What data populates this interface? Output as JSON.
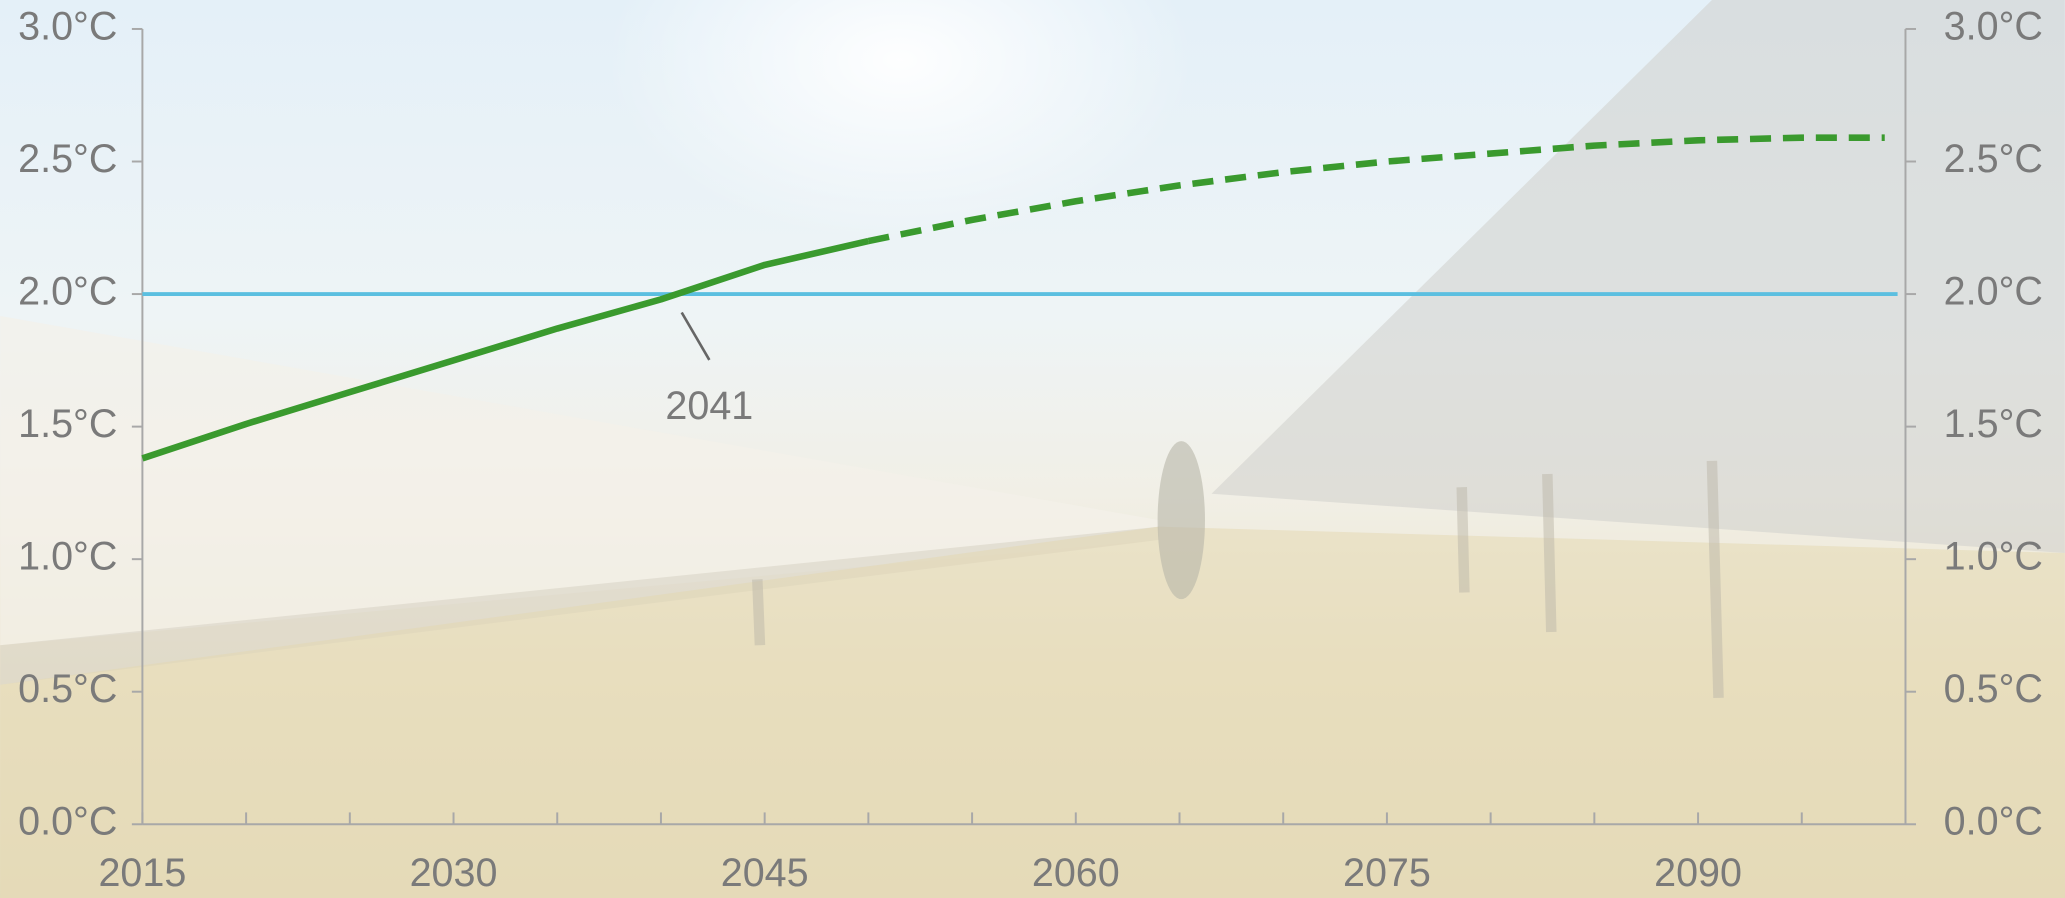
{
  "chart_data": {
    "type": "line",
    "x": [
      2015,
      2020,
      2025,
      2030,
      2035,
      2040,
      2045,
      2050,
      2055,
      2060,
      2065,
      2070,
      2075,
      2080,
      2085,
      2090,
      2095,
      2099
    ],
    "series": [
      {
        "color": "#3a9a2e",
        "dashed": false,
        "values": [
          1.38,
          1.51,
          1.63,
          1.75,
          1.87,
          1.98,
          2.11,
          2.2,
          null,
          null,
          null,
          null,
          null,
          null,
          null,
          null,
          null,
          null
        ]
      },
      {
        "color": "#3a9a2e",
        "dashed": true,
        "values": [
          null,
          null,
          null,
          null,
          null,
          null,
          null,
          2.2,
          2.28,
          2.35,
          2.41,
          2.46,
          2.5,
          2.53,
          2.56,
          2.58,
          2.59,
          2.59
        ]
      }
    ],
    "hlines": [
      {
        "value": 2.0,
        "color": "#5bbfe0"
      }
    ],
    "annotations": [
      {
        "label": "2041",
        "x": 2041,
        "y": 2.0
      }
    ],
    "xlim": [
      2015,
      2100
    ],
    "xticks": [
      2015,
      {
        "value": 2020,
        "label": null
      },
      {
        "value": 2025,
        "label": null
      },
      2030,
      {
        "value": 2035,
        "label": null
      },
      {
        "value": 2040,
        "label": null
      },
      2045,
      {
        "value": 2050,
        "label": null
      },
      {
        "value": 2055,
        "label": null
      },
      2060,
      {
        "value": 2065,
        "label": null
      },
      {
        "value": 2070,
        "label": null
      },
      2075,
      {
        "value": 2080,
        "label": null
      },
      {
        "value": 2085,
        "label": null
      },
      2090,
      {
        "value": 2095,
        "label": null
      },
      {
        "value": 2100,
        "label": null
      }
    ],
    "ylim": [
      0,
      3
    ],
    "yticks": [
      {
        "value": 0,
        "label": "0.0°C"
      },
      {
        "value": 0.5,
        "label": "0.5°C"
      },
      {
        "value": 1,
        "label": "1.0°C"
      },
      {
        "value": 1.5,
        "label": "1.5°C"
      },
      {
        "value": 2,
        "label": "2.0°C"
      },
      {
        "value": 2.5,
        "label": "2.5°C"
      },
      {
        "value": 3,
        "label": "3.0°C"
      }
    ],
    "y2lim": [
      0,
      3
    ],
    "y2ticks": [
      {
        "value": 0,
        "label": "0.0°C"
      },
      {
        "value": 0.5,
        "label": "0.5°C"
      },
      {
        "value": 1,
        "label": "1.0°C"
      },
      {
        "value": 1.5,
        "label": "1.5°C"
      },
      {
        "value": 2,
        "label": "2.0°C"
      },
      {
        "value": 2.5,
        "label": "2.5°C"
      },
      {
        "value": 3,
        "label": "3.0°C"
      }
    ],
    "grid": false
  }
}
